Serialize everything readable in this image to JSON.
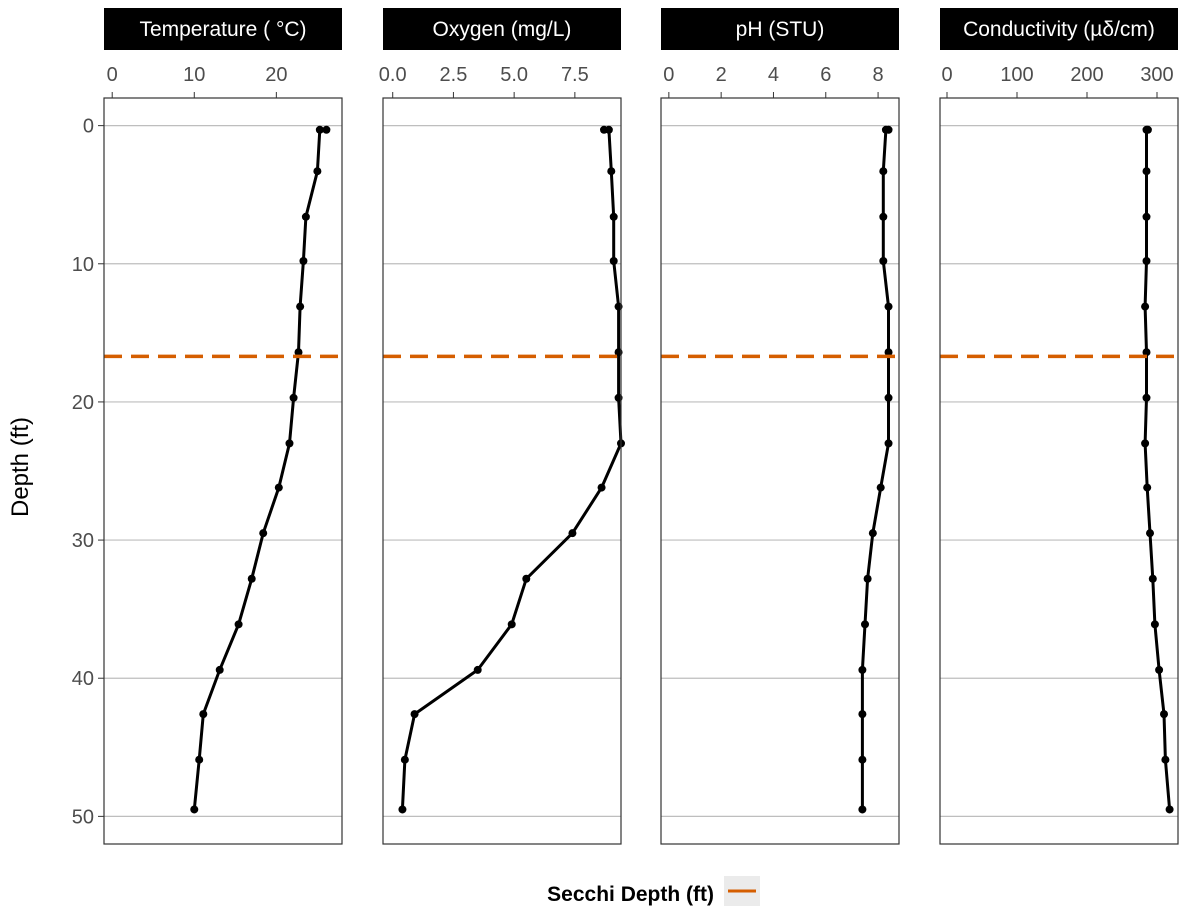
{
  "chart_data": {
    "type": "line",
    "ylabel": "Depth (ft)",
    "y_reversed": true,
    "ylim": [
      52,
      -2
    ],
    "y_ticks": [
      0,
      10,
      20,
      30,
      40,
      50
    ],
    "y_tick_labels": [
      "0",
      "10",
      "20",
      "30",
      "40",
      "50"
    ],
    "grid": "horizontal major gridlines",
    "facets_shared_depth": [
      0.3,
      0.3,
      3.3,
      6.6,
      9.8,
      13.1,
      16.4,
      19.7,
      23.0,
      26.2,
      29.5,
      32.8,
      36.1,
      39.4,
      42.6,
      45.9,
      49.5
    ],
    "facets": [
      {
        "name": "Temperature ( °C)",
        "xlim": [
          -1,
          28
        ],
        "x_ticks": [
          0,
          10,
          20
        ],
        "x_tick_labels": [
          "0",
          "10",
          "20"
        ],
        "values": [
          26.1,
          25.3,
          25.0,
          23.6,
          23.3,
          22.9,
          22.7,
          22.1,
          21.6,
          20.3,
          18.4,
          17.0,
          15.4,
          13.1,
          11.1,
          10.6,
          10.0
        ]
      },
      {
        "name": "Oxygen (mg/L)",
        "xlim": [
          -0.4,
          9.4
        ],
        "x_ticks": [
          0.0,
          2.5,
          5.0,
          7.5
        ],
        "x_tick_labels": [
          "0.0",
          "2.5",
          "5.0",
          "7.5"
        ],
        "values": [
          8.7,
          8.9,
          9.0,
          9.1,
          9.1,
          9.3,
          9.3,
          9.3,
          9.4,
          8.6,
          7.4,
          5.5,
          4.9,
          3.5,
          0.9,
          0.5,
          0.4
        ]
      },
      {
        "name": "pH (STU)",
        "xlim": [
          -0.3,
          8.8
        ],
        "x_ticks": [
          0,
          2,
          4,
          6,
          8
        ],
        "x_tick_labels": [
          "0",
          "2",
          "4",
          "6",
          "8"
        ],
        "values": [
          8.4,
          8.3,
          8.2,
          8.2,
          8.2,
          8.4,
          8.4,
          8.4,
          8.4,
          8.1,
          7.8,
          7.6,
          7.5,
          7.4,
          7.4,
          7.4,
          7.4
        ]
      },
      {
        "name": "Conductivity (µδ/cm)",
        "xlim": [
          -10,
          330
        ],
        "x_ticks": [
          0,
          100,
          200,
          300
        ],
        "x_tick_labels": [
          "0",
          "100",
          "200",
          "300"
        ],
        "values": [
          287,
          285,
          285,
          285,
          285,
          283,
          285,
          285,
          283,
          286,
          290,
          294,
          297,
          303,
          310,
          312,
          318
        ]
      }
    ],
    "reference_line": {
      "name": "Secchi Depth (ft)",
      "value": 16.7,
      "style": "dashed",
      "color": "#d55e00"
    },
    "legend": {
      "placement": "bottom",
      "title": "Secchi Depth (ft)"
    },
    "colors": {
      "line": "#000000",
      "strip": "#000000",
      "grid": "#bebebe",
      "secchi": "#d55e00",
      "legend_key_bg": "#ebebeb"
    }
  }
}
